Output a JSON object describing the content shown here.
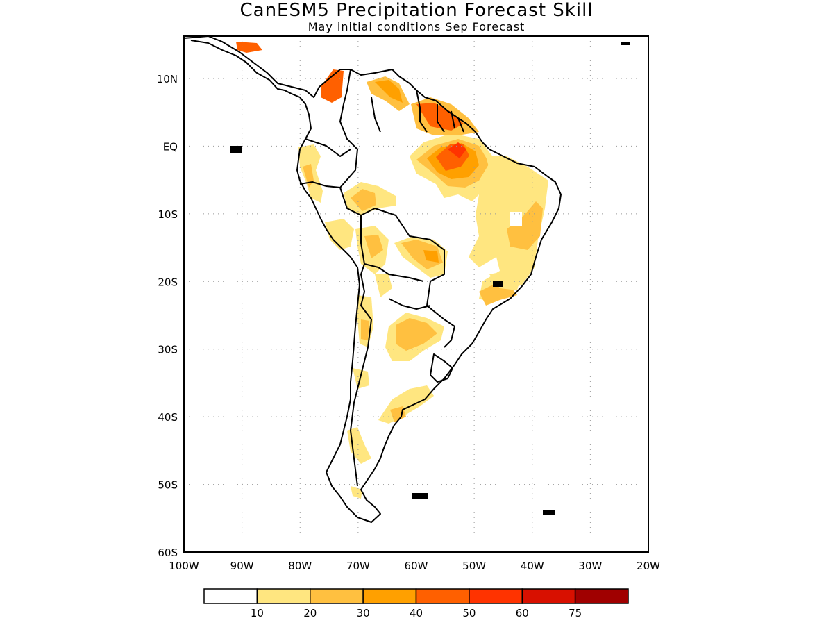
{
  "title": "CanESM5 Precipitation Forecast Skill",
  "subtitle": "May initial conditions  Sep Forecast",
  "map": {
    "region": "South America",
    "lon_range": [
      -100,
      -20
    ],
    "lat_range": [
      -60,
      5
    ],
    "lat_ticks": [
      {
        "value": 10,
        "label": "10N"
      },
      {
        "value": 0,
        "label": "EQ"
      },
      {
        "value": -10,
        "label": "10S"
      },
      {
        "value": -20,
        "label": "20S"
      },
      {
        "value": -30,
        "label": "30S"
      },
      {
        "value": -40,
        "label": "40S"
      },
      {
        "value": -50,
        "label": "50S"
      },
      {
        "value": -60,
        "label": "60S"
      }
    ],
    "lon_ticks": [
      {
        "value": -100,
        "label": "100W"
      },
      {
        "value": -90,
        "label": "90W"
      },
      {
        "value": -80,
        "label": "80W"
      },
      {
        "value": -70,
        "label": "70W"
      },
      {
        "value": -60,
        "label": "60W"
      },
      {
        "value": -50,
        "label": "50W"
      },
      {
        "value": -40,
        "label": "40W"
      },
      {
        "value": -30,
        "label": "30W"
      },
      {
        "value": -20,
        "label": "20W"
      }
    ],
    "grid": "dotted"
  },
  "colorbar": {
    "bins": [
      {
        "color": "#ffffff"
      },
      {
        "color": "#ffe680"
      },
      {
        "color": "#ffc040"
      },
      {
        "color": "#ffa000"
      },
      {
        "color": "#ff6000"
      },
      {
        "color": "#ff3300"
      },
      {
        "color": "#d81000"
      },
      {
        "color": "#a00000"
      }
    ],
    "labels": [
      "10",
      "20",
      "30",
      "40",
      "50",
      "60",
      "75"
    ]
  }
}
